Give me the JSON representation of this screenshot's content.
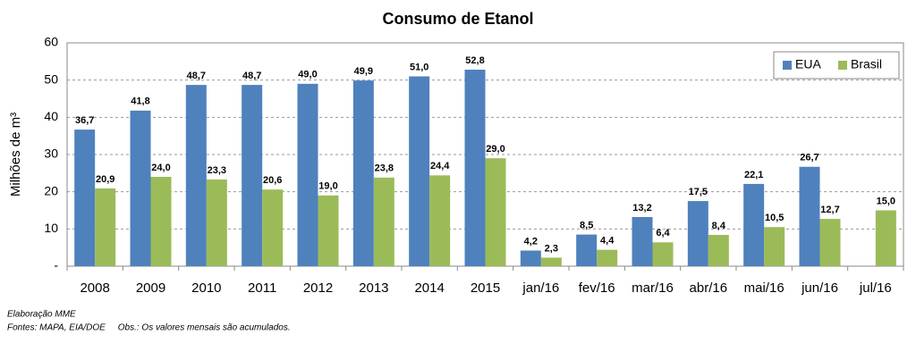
{
  "chart_data": {
    "type": "bar",
    "title": "Consumo de Etanol",
    "y_label": "Milhões de m³",
    "categories": [
      "2008",
      "2009",
      "2010",
      "2011",
      "2012",
      "2013",
      "2014",
      "2015",
      "jan/16",
      "fev/16",
      "mar/16",
      "abr/16",
      "mai/16",
      "jun/16",
      "jul/16"
    ],
    "series": [
      {
        "name": "EUA",
        "color": "#4f81bd",
        "values": [
          36.7,
          41.8,
          48.7,
          48.7,
          49.0,
          49.9,
          51.0,
          52.8,
          4.2,
          8.5,
          13.2,
          17.5,
          22.1,
          26.7,
          null
        ],
        "value_labels": [
          "36,7",
          "41,8",
          "48,7",
          "48,7",
          "49,0",
          "49,9",
          "51,0",
          "52,8",
          "4,2",
          "8,5",
          "13,2",
          "17,5",
          "22,1",
          "26,7",
          null
        ]
      },
      {
        "name": "Brasil",
        "color": "#9bbb59",
        "values": [
          20.9,
          24.0,
          23.3,
          20.6,
          19.0,
          23.8,
          24.4,
          29.0,
          2.3,
          4.4,
          6.4,
          8.4,
          10.5,
          12.7,
          15.0
        ],
        "value_labels": [
          "20,9",
          "24,0",
          "23,3",
          "20,6",
          "19,0",
          "23,8",
          "24,4",
          "29,0",
          "2,3",
          "4,4",
          "6,4",
          "8,4",
          "10,5",
          "12,7",
          "15,0"
        ]
      }
    ],
    "ylim": [
      0,
      60
    ],
    "yticks": [
      {
        "value": 0,
        "label": "-"
      },
      10,
      20,
      30,
      40,
      50,
      60
    ],
    "grid": true,
    "legend": "upper-right",
    "notes": [
      "Elaboração  MME",
      "Fontes: MAPA, EIA/DOE     Obs.: Os valores mensais são acumulados."
    ]
  }
}
